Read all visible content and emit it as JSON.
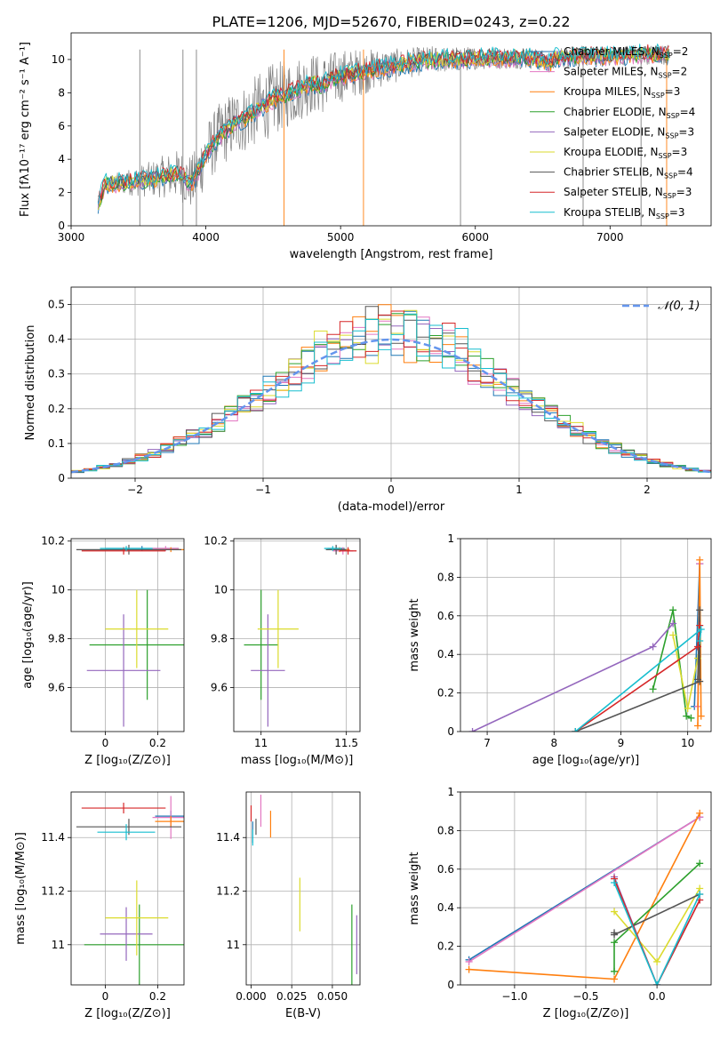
{
  "figure_title": "PLATE=1206, MJD=52670, FIBERID=0243, z=0.22",
  "colors": {
    "Chabrier MILES": "#1f77b4",
    "Salpeter MILES": "#e377c2",
    "Kroupa MILES": "#ff7f0e",
    "Chabrier ELODIE": "#2ca02c",
    "Salpeter ELODIE": "#9467bd",
    "Kroupa ELODIE": "#dbdb2d",
    "Chabrier STELIB": "#555555",
    "Salpeter STELIB": "#d62728",
    "Kroupa STELIB": "#17becf",
    "data": "#808080",
    "normal": "#6495ed"
  },
  "chart_data": [
    {
      "id": "spectrum",
      "type": "line",
      "xlabel": "wavelength [Angstrom, rest frame]",
      "ylabel": "Flux [fλ10⁻¹⁷ erg cm⁻² s⁻¹ A⁻¹]",
      "xlim": [
        3000,
        7750
      ],
      "ylim": [
        0,
        11.6
      ],
      "xticks": [
        3000,
        4000,
        5000,
        6000,
        7000
      ],
      "yticks": [
        0,
        2,
        4,
        6,
        8,
        10
      ],
      "legend_position": "right",
      "legend": [
        {
          "name": "Chabrier MILES",
          "label": "Chabrier MILES, N",
          "sub": "SSP",
          "n": "=2"
        },
        {
          "name": "Salpeter MILES",
          "label": "Salpeter MILES, N",
          "sub": "SSP",
          "n": "=2"
        },
        {
          "name": "Kroupa MILES",
          "label": "Kroupa MILES, N",
          "sub": "SSP",
          "n": "=3"
        },
        {
          "name": "Chabrier ELODIE",
          "label": "Chabrier ELODIE, N",
          "sub": "SSP",
          "n": "=4"
        },
        {
          "name": "Salpeter ELODIE",
          "label": "Salpeter ELODIE, N",
          "sub": "SSP",
          "n": "=3"
        },
        {
          "name": "Kroupa ELODIE",
          "label": "Kroupa ELODIE, N",
          "sub": "SSP",
          "n": "=3"
        },
        {
          "name": "Chabrier STELIB",
          "label": "Chabrier STELIB, N",
          "sub": "SSP",
          "n": "=4"
        },
        {
          "name": "Salpeter STELIB",
          "label": "Salpeter STELIB, N",
          "sub": "SSP",
          "n": "=3"
        },
        {
          "name": "Kroupa STELIB",
          "label": "Kroupa STELIB, N",
          "sub": "SSP",
          "n": "=3"
        }
      ],
      "continuum": [
        [
          3200,
          1.3
        ],
        [
          3250,
          2.5
        ],
        [
          3400,
          2.6
        ],
        [
          3500,
          2.7
        ],
        [
          3600,
          2.8
        ],
        [
          3700,
          3.0
        ],
        [
          3800,
          3.1
        ],
        [
          3850,
          2.8
        ],
        [
          3900,
          2.6
        ],
        [
          3950,
          3.3
        ],
        [
          4000,
          4.3
        ],
        [
          4100,
          5.4
        ],
        [
          4200,
          6.1
        ],
        [
          4300,
          6.5
        ],
        [
          4400,
          7.1
        ],
        [
          4500,
          7.6
        ],
        [
          4600,
          7.9
        ],
        [
          4700,
          8.3
        ],
        [
          4800,
          8.6
        ],
        [
          4850,
          8.4
        ],
        [
          4900,
          8.7
        ],
        [
          5000,
          9.0
        ],
        [
          5100,
          9.2
        ],
        [
          5200,
          9.3
        ],
        [
          5300,
          9.5
        ],
        [
          5400,
          9.6
        ],
        [
          5500,
          9.8
        ],
        [
          5600,
          9.9
        ],
        [
          5700,
          10.0
        ],
        [
          5800,
          10.0
        ],
        [
          5900,
          10.0
        ],
        [
          6000,
          10.1
        ],
        [
          6200,
          10.1
        ],
        [
          6400,
          10.1
        ],
        [
          6563,
          9.8
        ],
        [
          6600,
          10.1
        ],
        [
          6800,
          10.2
        ],
        [
          7000,
          10.2
        ],
        [
          7200,
          10.3
        ],
        [
          7400,
          10.3
        ]
      ],
      "noise_amplitude": [
        [
          3200,
          0.4
        ],
        [
          3600,
          1.1
        ],
        [
          4000,
          1.9
        ],
        [
          4500,
          2.2
        ],
        [
          5000,
          1.6
        ],
        [
          5500,
          0.9
        ],
        [
          6000,
          0.7
        ],
        [
          7000,
          0.6
        ],
        [
          7400,
          0.6
        ]
      ],
      "spikes": [
        [
          3510,
          0
        ],
        [
          3830,
          0
        ],
        [
          3930,
          0
        ],
        [
          4580,
          0
        ],
        [
          5170,
          0.1
        ],
        [
          5890,
          0
        ],
        [
          6800,
          0
        ],
        [
          7230,
          0
        ],
        [
          7420,
          0
        ]
      ]
    },
    {
      "id": "residuals",
      "type": "histogram",
      "xlabel": "(data-model)/error",
      "ylabel": "Normed distribution",
      "xlim": [
        -2.5,
        2.5
      ],
      "ylim": [
        0,
        0.55
      ],
      "xticks": [
        -2,
        -1,
        0,
        1,
        2
      ],
      "yticks": [
        0.0,
        0.1,
        0.2,
        0.3,
        0.4,
        0.5
      ],
      "grid": true,
      "legend": [
        {
          "name": "normal",
          "label": "𝒩(0, 1)"
        }
      ],
      "legend_position": "top-right",
      "bin_width": 0.1
    },
    {
      "id": "age-vs-Z",
      "type": "errorbar",
      "xlabel": "Z [log₁₀(Z/Z⊙)]",
      "ylabel": "age  [log₁₀(age/yr)]",
      "xlim": [
        -0.13,
        0.3
      ],
      "ylim": [
        9.42,
        10.21
      ],
      "xticks": [
        0.0,
        0.2
      ],
      "yticks": [
        9.6,
        9.8,
        10.0,
        10.2
      ],
      "grid": true,
      "points": [
        {
          "series": "Chabrier MILES",
          "x": 0.14,
          "y": 10.17,
          "xerr": 0.14,
          "yerr": 0.01
        },
        {
          "series": "Salpeter MILES",
          "x": 0.23,
          "y": 10.17,
          "xerr": 0.05,
          "yerr": 0.01
        },
        {
          "series": "Kroupa MILES",
          "x": 0.25,
          "y": 10.165,
          "xerr": 0.06,
          "yerr": 0.01
        },
        {
          "series": "Chabrier ELODIE",
          "x": 0.16,
          "y": 9.775,
          "xerr": 0.22,
          "yerr": 0.225
        },
        {
          "series": "Salpeter ELODIE",
          "x": 0.07,
          "y": 9.67,
          "xerr": 0.14,
          "yerr": 0.23
        },
        {
          "series": "Kroupa ELODIE",
          "x": 0.12,
          "y": 9.84,
          "xerr": 0.12,
          "yerr": 0.16
        },
        {
          "series": "Chabrier STELIB",
          "x": 0.09,
          "y": 10.165,
          "xerr": 0.2,
          "yerr": 0.02
        },
        {
          "series": "Salpeter STELIB",
          "x": 0.07,
          "y": 10.16,
          "xerr": 0.16,
          "yerr": 0.015
        },
        {
          "series": "Kroupa STELIB",
          "x": 0.08,
          "y": 10.17,
          "xerr": 0.1,
          "yerr": 0.01
        }
      ]
    },
    {
      "id": "age-vs-mass",
      "type": "errorbar",
      "xlabel": "mass [log₁₀(M/M⊙)]",
      "ylabel": "",
      "xlim": [
        10.84,
        11.58
      ],
      "ylim": [
        9.42,
        10.21
      ],
      "xticks": [
        11.0,
        11.5
      ],
      "yticks": [
        9.6,
        9.8,
        10.0,
        10.2
      ],
      "grid": true,
      "points": [
        {
          "series": "Chabrier MILES",
          "x": 11.44,
          "y": 10.17,
          "xerr": 0.05,
          "yerr": 0.01
        },
        {
          "series": "Salpeter MILES",
          "x": 11.48,
          "y": 10.16,
          "xerr": 0.06,
          "yerr": 0.015
        },
        {
          "series": "Kroupa MILES",
          "x": 11.46,
          "y": 10.165,
          "xerr": 0.06,
          "yerr": 0.01
        },
        {
          "series": "Chabrier ELODIE",
          "x": 11.0,
          "y": 9.775,
          "xerr": 0.1,
          "yerr": 0.225
        },
        {
          "series": "Salpeter ELODIE",
          "x": 11.04,
          "y": 9.67,
          "xerr": 0.1,
          "yerr": 0.23
        },
        {
          "series": "Kroupa ELODIE",
          "x": 11.1,
          "y": 9.84,
          "xerr": 0.12,
          "yerr": 0.16
        },
        {
          "series": "Chabrier STELIB",
          "x": 11.44,
          "y": 10.165,
          "xerr": 0.06,
          "yerr": 0.02
        },
        {
          "series": "Salpeter STELIB",
          "x": 11.51,
          "y": 10.16,
          "xerr": 0.05,
          "yerr": 0.015
        },
        {
          "series": "Kroupa STELIB",
          "x": 11.42,
          "y": 10.17,
          "xerr": 0.05,
          "yerr": 0.01
        }
      ]
    },
    {
      "id": "weight-vs-age",
      "type": "line",
      "xlabel": "age  [log₁₀(age/yr)]",
      "ylabel": "mass weight",
      "xlim": [
        6.6,
        10.35
      ],
      "ylim": [
        0,
        1.0
      ],
      "xticks": [
        7,
        8,
        9,
        10
      ],
      "yticks": [
        0.0,
        0.2,
        0.4,
        0.6,
        0.8,
        1.0
      ],
      "grid": true,
      "series": [
        {
          "name": "Chabrier MILES",
          "x": [
            10.1,
            10.18
          ],
          "y": [
            0.13,
            0.87
          ]
        },
        {
          "name": "Salpeter MILES",
          "x": [
            10.15,
            10.18
          ],
          "y": [
            0.13,
            0.87
          ]
        },
        {
          "name": "Kroupa MILES",
          "x": [
            10.15,
            10.18,
            10.2
          ],
          "y": [
            0.03,
            0.89,
            0.08
          ]
        },
        {
          "name": "Chabrier ELODIE",
          "x": [
            9.48,
            9.78,
            9.98,
            10.05
          ],
          "y": [
            0.22,
            0.63,
            0.08,
            0.07
          ]
        },
        {
          "name": "Salpeter ELODIE",
          "x": [
            6.78,
            9.48,
            9.78
          ],
          "y": [
            0.0,
            0.44,
            0.56
          ]
        },
        {
          "name": "Kroupa ELODIE",
          "x": [
            9.78,
            10.0,
            10.15
          ],
          "y": [
            0.5,
            0.12,
            0.38
          ]
        },
        {
          "name": "Chabrier STELIB",
          "x": [
            8.32,
            10.18,
            10.18,
            10.15
          ],
          "y": [
            0.0,
            0.26,
            0.63,
            0.27
          ]
        },
        {
          "name": "Salpeter STELIB",
          "x": [
            8.32,
            10.15,
            10.18
          ],
          "y": [
            0.0,
            0.44,
            0.55
          ]
        },
        {
          "name": "Kroupa STELIB",
          "x": [
            8.32,
            10.2,
            10.18
          ],
          "y": [
            0.0,
            0.53,
            0.47
          ]
        }
      ]
    },
    {
      "id": "mass-vs-Z",
      "type": "errorbar",
      "xlabel": "Z [log₁₀(Z/Z⊙)]",
      "ylabel": "mass [log₁₀(M/M⊙)]",
      "xlim": [
        -0.13,
        0.3
      ],
      "ylim": [
        10.85,
        11.57
      ],
      "xticks": [
        0.0,
        0.2
      ],
      "yticks": [
        11.0,
        11.2,
        11.4
      ],
      "grid": true,
      "points": [
        {
          "series": "Chabrier MILES",
          "x": 0.25,
          "y": 11.48,
          "xerr": 0.06,
          "yerr": 0.02
        },
        {
          "series": "Salpeter MILES",
          "x": 0.25,
          "y": 11.475,
          "xerr": 0.07,
          "yerr": 0.08
        },
        {
          "series": "Kroupa MILES",
          "x": 0.25,
          "y": 11.46,
          "xerr": 0.06,
          "yerr": 0.02
        },
        {
          "series": "Chabrier ELODIE",
          "x": 0.13,
          "y": 11.0,
          "xerr": 0.21,
          "yerr": 0.15
        },
        {
          "series": "Salpeter ELODIE",
          "x": 0.08,
          "y": 11.04,
          "xerr": 0.1,
          "yerr": 0.1
        },
        {
          "series": "Kroupa ELODIE",
          "x": 0.12,
          "y": 11.1,
          "xerr": 0.12,
          "yerr": 0.14
        },
        {
          "series": "Chabrier STELIB",
          "x": 0.09,
          "y": 11.44,
          "xerr": 0.2,
          "yerr": 0.03
        },
        {
          "series": "Salpeter STELIB",
          "x": 0.07,
          "y": 11.51,
          "xerr": 0.16,
          "yerr": 0.02
        },
        {
          "series": "Kroupa STELIB",
          "x": 0.08,
          "y": 11.42,
          "xerr": 0.11,
          "yerr": 0.03
        }
      ]
    },
    {
      "id": "mass-vs-ebv",
      "type": "errorbar",
      "xlabel": "E(B-V)",
      "ylabel": "",
      "xlim": [
        -0.003,
        0.067
      ],
      "ylim": [
        10.85,
        11.57
      ],
      "xticks": [
        0.0,
        0.025,
        0.05
      ],
      "xticklabels": [
        "0.000",
        "0.025",
        "0.050"
      ],
      "yticks": [
        11.0,
        11.2,
        11.4
      ],
      "grid": true,
      "points": [
        {
          "series": "Chabrier MILES",
          "x": 0.001,
          "y": 11.42,
          "yerr": 0.04
        },
        {
          "series": "Salpeter MILES",
          "x": 0.006,
          "y": 11.5,
          "yerr": 0.06
        },
        {
          "series": "Kroupa MILES",
          "x": 0.012,
          "y": 11.45,
          "yerr": 0.05
        },
        {
          "series": "Chabrier ELODIE",
          "x": 0.062,
          "y": 11.0,
          "yerr": 0.15
        },
        {
          "series": "Salpeter ELODIE",
          "x": 0.065,
          "y": 11.0,
          "yerr": 0.11
        },
        {
          "series": "Kroupa ELODIE",
          "x": 0.03,
          "y": 11.15,
          "yerr": 0.1
        },
        {
          "series": "Chabrier STELIB",
          "x": 0.003,
          "y": 11.44,
          "yerr": 0.03
        },
        {
          "series": "Salpeter STELIB",
          "x": 0.0,
          "y": 11.49,
          "yerr": 0.03
        },
        {
          "series": "Kroupa STELIB",
          "x": 0.001,
          "y": 11.4,
          "yerr": 0.03
        }
      ]
    },
    {
      "id": "weight-vs-Z",
      "type": "line",
      "xlabel": "Z [log₁₀(Z/Z⊙)]",
      "ylabel": "mass weight",
      "xlim": [
        -1.38,
        0.38
      ],
      "ylim": [
        0,
        1.0
      ],
      "xticks": [
        -1.0,
        -0.5,
        0.0
      ],
      "xticklabels": [
        "−1.0",
        "−0.5",
        "0.0"
      ],
      "yticks": [
        0.0,
        0.2,
        0.4,
        0.6,
        0.8,
        1.0
      ],
      "grid": true,
      "series": [
        {
          "name": "Chabrier MILES",
          "x": [
            -1.32,
            0.3
          ],
          "y": [
            0.13,
            0.87
          ]
        },
        {
          "name": "Salpeter MILES",
          "x": [
            -1.32,
            0.3
          ],
          "y": [
            0.12,
            0.87
          ]
        },
        {
          "name": "Kroupa MILES",
          "x": [
            -1.32,
            -0.3,
            0.3
          ],
          "y": [
            0.08,
            0.03,
            0.89
          ]
        },
        {
          "name": "Chabrier ELODIE",
          "x": [
            -0.3,
            -0.3,
            0.3
          ],
          "y": [
            0.07,
            0.22,
            0.63
          ]
        },
        {
          "name": "Salpeter ELODIE",
          "x": [
            -0.3,
            0.0,
            0.3
          ],
          "y": [
            0.56,
            0.0,
            0.44
          ]
        },
        {
          "name": "Kroupa ELODIE",
          "x": [
            -0.3,
            0.0,
            0.3
          ],
          "y": [
            0.38,
            0.12,
            0.5
          ]
        },
        {
          "name": "Chabrier STELIB",
          "x": [
            -0.3,
            -0.3,
            0.3
          ],
          "y": [
            0.27,
            0.26,
            0.47
          ]
        },
        {
          "name": "Salpeter STELIB",
          "x": [
            -0.3,
            0.0,
            0.3
          ],
          "y": [
            0.55,
            0.0,
            0.44
          ]
        },
        {
          "name": "Kroupa STELIB",
          "x": [
            -0.3,
            0.0,
            0.3
          ],
          "y": [
            0.53,
            0.0,
            0.47
          ]
        }
      ]
    }
  ]
}
